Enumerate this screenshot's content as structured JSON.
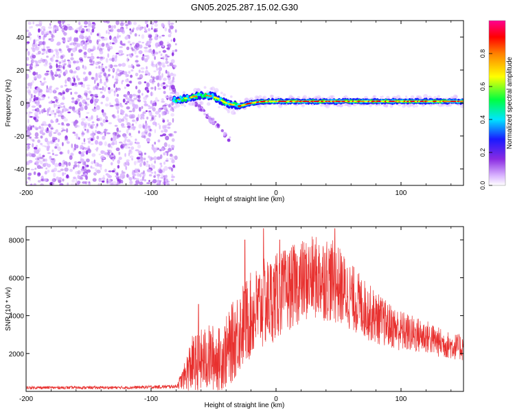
{
  "title": "GN05.2025.287.15.02.G30",
  "colors": {
    "snr_line": "#e8302e",
    "axis": "#000000",
    "colormap": [
      "#ffffff",
      "#d9b3ff",
      "#8a2be2",
      "#1a1aff",
      "#00e5ff",
      "#00ff40",
      "#ffff00",
      "#ff8000",
      "#ff0000",
      "#ff0090"
    ]
  },
  "chart_data": [
    {
      "type": "heatmap",
      "name": "spectrogram",
      "xlabel": "Height of straight line (km)",
      "ylabel": "Frequency (Hz)",
      "xlim": [
        -200,
        150
      ],
      "ylim": [
        -50,
        50
      ],
      "xticks": [
        -200,
        -100,
        0,
        100
      ],
      "xtick_labels": [
        "-200",
        "-100",
        "0",
        "100"
      ],
      "yticks": [
        -40,
        -20,
        0,
        20,
        40
      ],
      "ytick_labels": [
        "-40",
        "-20",
        "0",
        "20",
        "40"
      ],
      "noise_region_x": [
        -200,
        -80
      ],
      "signal_trace": [
        {
          "x": -80,
          "y": 2
        },
        {
          "x": -70,
          "y": 3
        },
        {
          "x": -60,
          "y": 5
        },
        {
          "x": -50,
          "y": 4
        },
        {
          "x": -40,
          "y": 0
        },
        {
          "x": -30,
          "y": -2
        },
        {
          "x": -20,
          "y": 0
        },
        {
          "x": -10,
          "y": 1
        },
        {
          "x": 0,
          "y": 1
        },
        {
          "x": 20,
          "y": 1
        },
        {
          "x": 50,
          "y": 1
        },
        {
          "x": 80,
          "y": 1
        },
        {
          "x": 110,
          "y": 1
        },
        {
          "x": 150,
          "y": 1
        }
      ],
      "side_branch": [
        {
          "x": -68,
          "y": 2
        },
        {
          "x": -55,
          "y": -8
        },
        {
          "x": -45,
          "y": -15
        },
        {
          "x": -36,
          "y": -23
        }
      ],
      "colorbar": {
        "label": "Normalized spectral amplitude",
        "range": [
          0,
          1
        ],
        "ticks": [
          0.0,
          0.2,
          0.4,
          0.6,
          0.8
        ],
        "tick_labels": [
          "0.0",
          "0.2",
          "0.4",
          "0.6",
          "0.8"
        ]
      }
    },
    {
      "type": "line",
      "name": "snr",
      "xlabel": "Height of straight line (km)",
      "ylabel": "SNR (10 * v/v)",
      "xlim": [
        -200,
        150
      ],
      "ylim": [
        0,
        8700
      ],
      "xticks": [
        -200,
        -100,
        0,
        100
      ],
      "xtick_labels": [
        "-200",
        "-100",
        "0",
        "100"
      ],
      "yticks": [
        2000,
        4000,
        6000,
        8000
      ],
      "ytick_labels": [
        "2000",
        "4000",
        "6000",
        "8000"
      ],
      "envelope": [
        {
          "x": -200,
          "y": 200,
          "spread": 80
        },
        {
          "x": -120,
          "y": 200,
          "spread": 80
        },
        {
          "x": -80,
          "y": 260,
          "spread": 100
        },
        {
          "x": -74,
          "y": 700,
          "spread": 600
        },
        {
          "x": -68,
          "y": 1400,
          "spread": 1500
        },
        {
          "x": -60,
          "y": 1600,
          "spread": 1700
        },
        {
          "x": -52,
          "y": 1800,
          "spread": 1800
        },
        {
          "x": -45,
          "y": 1700,
          "spread": 1700
        },
        {
          "x": -38,
          "y": 2200,
          "spread": 2000
        },
        {
          "x": -30,
          "y": 3200,
          "spread": 2300
        },
        {
          "x": -20,
          "y": 4000,
          "spread": 2300
        },
        {
          "x": -10,
          "y": 4600,
          "spread": 2400
        },
        {
          "x": 0,
          "y": 5000,
          "spread": 2300
        },
        {
          "x": 10,
          "y": 5400,
          "spread": 2200
        },
        {
          "x": 20,
          "y": 5800,
          "spread": 2200
        },
        {
          "x": 30,
          "y": 6000,
          "spread": 2200
        },
        {
          "x": 40,
          "y": 6000,
          "spread": 2300
        },
        {
          "x": 50,
          "y": 5600,
          "spread": 2100
        },
        {
          "x": 60,
          "y": 5000,
          "spread": 1800
        },
        {
          "x": 70,
          "y": 4400,
          "spread": 1600
        },
        {
          "x": 80,
          "y": 3900,
          "spread": 1400
        },
        {
          "x": 90,
          "y": 3500,
          "spread": 1200
        },
        {
          "x": 100,
          "y": 3200,
          "spread": 1100
        },
        {
          "x": 110,
          "y": 3000,
          "spread": 1000
        },
        {
          "x": 120,
          "y": 2900,
          "spread": 900
        },
        {
          "x": 130,
          "y": 2600,
          "spread": 800
        },
        {
          "x": 140,
          "y": 2400,
          "spread": 700
        },
        {
          "x": 150,
          "y": 2300,
          "spread": 700
        }
      ],
      "peaks": [
        {
          "x": -10,
          "y": 8600
        },
        {
          "x": 47,
          "y": 8600
        },
        {
          "x": -25,
          "y": 8000
        },
        {
          "x": 3,
          "y": 8000
        },
        {
          "x": -62,
          "y": 4600
        }
      ]
    }
  ]
}
